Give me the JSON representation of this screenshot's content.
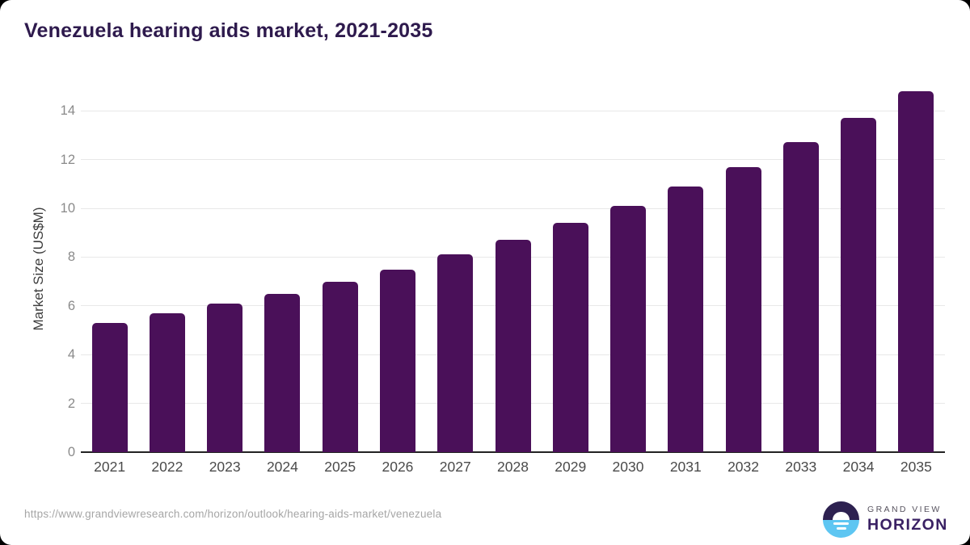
{
  "title": "Venezuela hearing aids market, 2021-2035",
  "chart_data": {
    "type": "bar",
    "title": "Venezuela hearing aids market, 2021-2035",
    "categories": [
      "2021",
      "2022",
      "2023",
      "2024",
      "2025",
      "2026",
      "2027",
      "2028",
      "2029",
      "2030",
      "2031",
      "2032",
      "2033",
      "2034",
      "2035"
    ],
    "values": [
      5.3,
      5.7,
      6.1,
      6.5,
      7.0,
      7.5,
      8.1,
      8.7,
      9.4,
      10.1,
      10.9,
      11.7,
      12.7,
      13.7,
      14.8
    ],
    "xlabel": "",
    "ylabel": "Market Size (US$M)",
    "ylim": [
      0,
      15.1
    ],
    "yticks": [
      0,
      2,
      4,
      6,
      8,
      10,
      12,
      14
    ],
    "grid": true,
    "legend_position": "none",
    "bar_color": "#4A1059"
  },
  "footer": {
    "source_url": "https://www.grandviewresearch.com/horizon/outlook/hearing-aids-market/venezuela"
  },
  "logo": {
    "line1": "GRAND VIEW",
    "line2": "HORIZON",
    "circle_top_color": "#2D2150",
    "circle_bottom_color": "#5EC6F2"
  },
  "colors": {
    "bar": "#4A1059",
    "title_text": "#2E1A4D",
    "gridline": "#E8E8E8",
    "baseline": "#222222",
    "y_tick_text": "#8A8A8A",
    "x_tick_text": "#4A4A4A",
    "axis_title_text": "#3D3D3D",
    "url_text": "#A6A6A6"
  }
}
